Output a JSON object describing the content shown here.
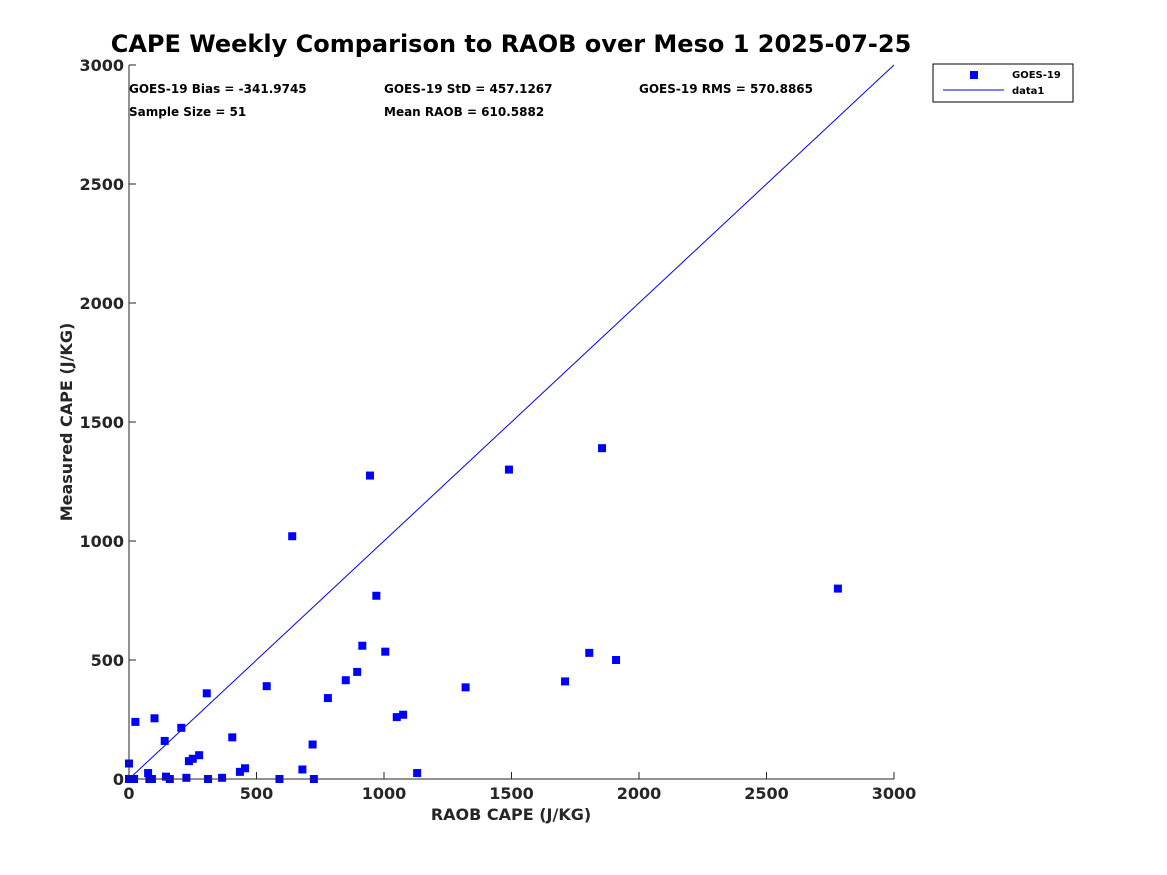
{
  "chart_data": {
    "type": "scatter",
    "title": "CAPE Weekly Comparison to RAOB over Meso 1 2025-07-25",
    "xlabel": "RAOB CAPE (J/KG)",
    "ylabel": "Measured CAPE (J/KG)",
    "xlim": [
      0,
      3000
    ],
    "ylim": [
      0,
      3000
    ],
    "xticks": [
      "0",
      "500",
      "1000",
      "1500",
      "2000",
      "2500",
      "3000"
    ],
    "yticks": [
      "0",
      "500",
      "1000",
      "1500",
      "2000",
      "2500",
      "3000"
    ],
    "grid": false,
    "legend_position": "top-right",
    "legend": [
      {
        "name": "GOES-19",
        "kind": "marker",
        "color": "#0000ff"
      },
      {
        "name": "data1",
        "kind": "line",
        "color": "#0000ff"
      }
    ],
    "stats": [
      "GOES-19 Bias = -341.9745",
      "GOES-19 StD = 457.1267",
      "GOES-19 RMS = 570.8865",
      "Sample Size = 51",
      "Mean RAOB = 610.5882"
    ],
    "reference_line": {
      "name": "data1",
      "x": [
        0,
        3000
      ],
      "y": [
        0,
        3000
      ],
      "color": "#0000ff"
    },
    "series": [
      {
        "name": "GOES-19",
        "color": "#0000ff",
        "points": [
          [
            0,
            65
          ],
          [
            0,
            0
          ],
          [
            10,
            0
          ],
          [
            20,
            0
          ],
          [
            25,
            240
          ],
          [
            75,
            25
          ],
          [
            80,
            0
          ],
          [
            90,
            0
          ],
          [
            100,
            255
          ],
          [
            140,
            160
          ],
          [
            145,
            10
          ],
          [
            160,
            0
          ],
          [
            205,
            215
          ],
          [
            225,
            5
          ],
          [
            235,
            75
          ],
          [
            250,
            85
          ],
          [
            275,
            100
          ],
          [
            305,
            360
          ],
          [
            310,
            0
          ],
          [
            365,
            5
          ],
          [
            405,
            175
          ],
          [
            435,
            30
          ],
          [
            455,
            45
          ],
          [
            540,
            390
          ],
          [
            590,
            0
          ],
          [
            640,
            1020
          ],
          [
            680,
            40
          ],
          [
            720,
            145
          ],
          [
            725,
            0
          ],
          [
            780,
            340
          ],
          [
            850,
            415
          ],
          [
            895,
            450
          ],
          [
            915,
            560
          ],
          [
            945,
            1275
          ],
          [
            970,
            770
          ],
          [
            1005,
            535
          ],
          [
            1050,
            260
          ],
          [
            1075,
            270
          ],
          [
            1130,
            25
          ],
          [
            1320,
            385
          ],
          [
            1490,
            1300
          ],
          [
            1710,
            410
          ],
          [
            1805,
            530
          ],
          [
            1855,
            1390
          ],
          [
            1910,
            500
          ],
          [
            2780,
            800
          ]
        ]
      }
    ]
  }
}
